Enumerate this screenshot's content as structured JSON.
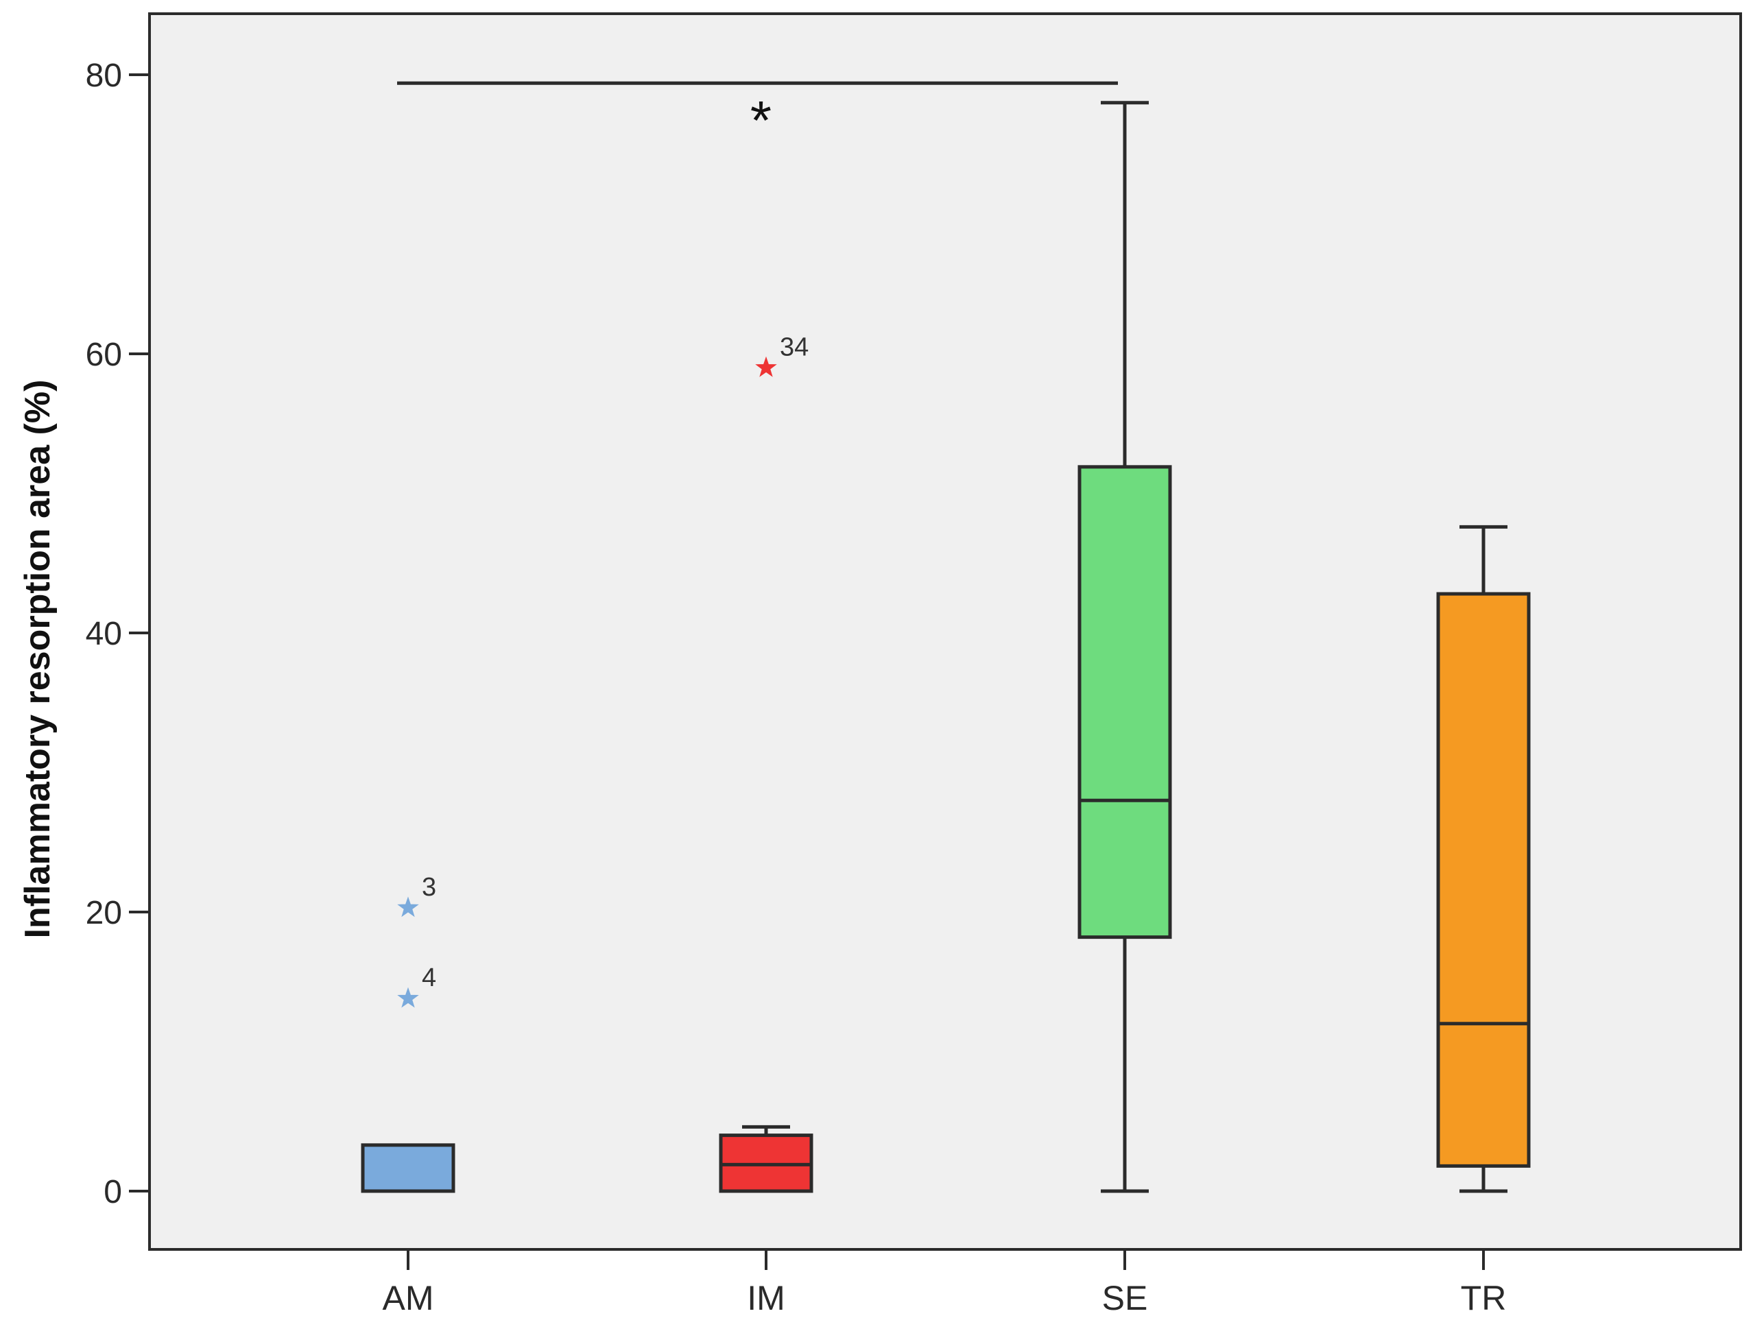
{
  "chart_data": {
    "type": "box",
    "ylabel": "Inflammatory resorption area (%)",
    "xlabel": "",
    "title": "",
    "ylim": [
      -8,
      85
    ],
    "yticks": [
      0,
      20,
      40,
      60,
      80
    ],
    "grid": false,
    "categories": [
      "AM",
      "IM",
      "SE",
      "TR"
    ],
    "boxes": [
      {
        "name": "AM",
        "whisker_low": 0,
        "q1": 0,
        "median": 0,
        "q3": 3.3,
        "whisker_high": 3.3,
        "color": "#7aaadc",
        "outliers": [
          {
            "label": "3",
            "value": 20.3
          },
          {
            "label": "4",
            "value": 13.8
          }
        ],
        "outlier_color": "#7aaadc"
      },
      {
        "name": "IM",
        "whisker_low": 0,
        "q1": 0,
        "median": 1.9,
        "q3": 4.0,
        "whisker_high": 4.6,
        "color": "#ee3434",
        "outliers": [
          {
            "label": "34",
            "value": 59.0
          }
        ],
        "outlier_color": "#ee3434"
      },
      {
        "name": "SE",
        "whisker_low": 0,
        "q1": 18.2,
        "median": 28.0,
        "q3": 51.9,
        "whisker_high": 78.0,
        "color": "#6edc7e",
        "outliers": []
      },
      {
        "name": "TR",
        "whisker_low": 0,
        "q1": 1.8,
        "median": 12.0,
        "q3": 42.8,
        "whisker_high": 47.6,
        "color": "#f59a22",
        "outliers": []
      }
    ],
    "significance": {
      "from": "AM",
      "to": "SE",
      "value": 79.4,
      "label": "*"
    },
    "colors": {
      "plot_background": "#f0f0f0",
      "frame": "#2b2b2b",
      "box_edge": "#2b2b2b"
    }
  }
}
